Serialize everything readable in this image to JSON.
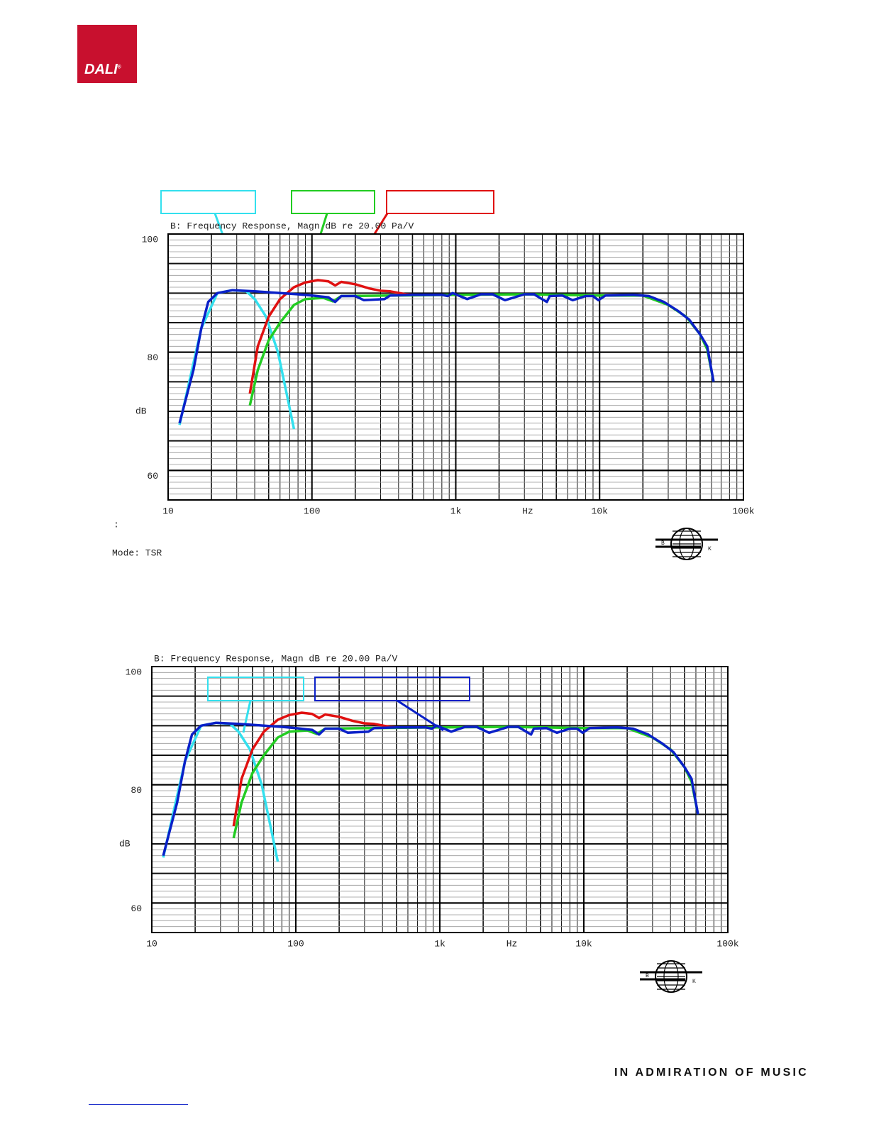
{
  "header": {
    "logo": "DALI",
    "logo_mark": "®"
  },
  "chart_data": [
    {
      "type": "line",
      "title": "B: Frequency Response, Magn dB re 20.00 Pa/V",
      "x_label": "Hz",
      "y_label": "dB",
      "annotation": ":",
      "mode": "Mode: TSR",
      "log_x": true,
      "grid": true,
      "minor_grid": true,
      "xlim": [
        10,
        100000
      ],
      "ylim": [
        55,
        100
      ],
      "xticks": [
        10,
        100,
        {
          "value": 1000,
          "label": "1k"
        },
        {
          "value": 10000,
          "label": "10k"
        },
        {
          "value": 100000,
          "label": "100k"
        }
      ],
      "yticks": [
        60,
        80,
        100
      ],
      "bk_logo": {
        "left": "B",
        "right": "K"
      },
      "series": [
        {
          "color": "#33e0ee",
          "x": [
            12,
            17,
            22,
            28,
            35,
            40,
            48,
            58,
            68,
            75
          ],
          "values": [
            67.7,
            84,
            90,
            90.5,
            90.3,
            89,
            86,
            80,
            72,
            67
          ]
        },
        {
          "color": "#22cc22",
          "x": [
            37,
            42,
            50,
            60,
            75,
            90,
            120,
            140,
            160,
            350,
            1000,
            3000,
            10000,
            20000,
            30000,
            40000,
            50000,
            56000,
            62000
          ],
          "values": [
            71,
            77,
            82,
            85,
            88,
            89,
            89.2,
            88.6,
            89.5,
            89.6,
            89.7,
            89.8,
            89.6,
            89.6,
            88,
            86,
            83,
            80.5,
            75
          ]
        },
        {
          "color": "#e01010",
          "x": [
            37,
            42,
            50,
            60,
            75,
            90,
            110,
            130,
            145,
            160,
            200,
            250,
            300,
            350,
            450,
            500
          ],
          "values": [
            73,
            81,
            86,
            89,
            91,
            91.8,
            92.2,
            92,
            91.3,
            91.9,
            91.5,
            90.8,
            90.4,
            90.3,
            89.8,
            89.7
          ]
        },
        {
          "color": "#0a20c8",
          "x": [
            12,
            15,
            17,
            19,
            22,
            28,
            40,
            60,
            80,
            100,
            130,
            145,
            160,
            200,
            230,
            320,
            350,
            500,
            800,
            880,
            950,
            1200,
            1500,
            1800,
            2200,
            3000,
            3500,
            4300,
            4500,
            5500,
            6500,
            8000,
            9000,
            9800,
            11000,
            17000,
            22000,
            28000,
            35000,
            42000,
            50000,
            56000,
            62000
          ],
          "values": [
            68,
            77,
            84,
            88.5,
            90,
            90.5,
            90.3,
            90,
            89.8,
            89.6,
            89.3,
            88.5,
            89.5,
            89.5,
            88.8,
            89,
            89.6,
            89.7,
            89.7,
            89.5,
            90,
            89,
            89.8,
            89.8,
            88.8,
            89.8,
            89.8,
            88.5,
            89.5,
            89.6,
            88.8,
            89.5,
            89.5,
            88.8,
            89.6,
            89.7,
            89.5,
            88.5,
            87,
            85.5,
            83,
            81,
            75
          ]
        }
      ]
    },
    {
      "type": "line",
      "title": "B: Frequency Response, Magn dB re 20.00 Pa/V",
      "x_label": "Hz",
      "y_label": "dB",
      "log_x": true,
      "grid": true,
      "minor_grid": true,
      "xlim": [
        10,
        100000
      ],
      "ylim": [
        55,
        100
      ],
      "xticks": [
        10,
        100,
        {
          "value": 1000,
          "label": "1k"
        },
        {
          "value": 10000,
          "label": "10k"
        },
        {
          "value": 100000,
          "label": "100k"
        }
      ],
      "yticks": [
        60,
        80,
        100
      ],
      "bk_logo": {
        "left": "B",
        "right": "K"
      },
      "series": [
        {
          "color": "#33e0ee",
          "x": [
            12,
            17,
            22,
            28,
            35,
            40,
            48,
            58,
            68,
            75
          ],
          "values": [
            67.7,
            84,
            90,
            90.5,
            90.3,
            89,
            86,
            80,
            72,
            67
          ]
        },
        {
          "color": "#22cc22",
          "x": [
            37,
            42,
            50,
            60,
            75,
            90,
            120,
            140,
            160,
            350,
            1000,
            3000,
            10000,
            20000,
            30000,
            40000,
            50000,
            56000,
            62000
          ],
          "values": [
            71,
            77,
            82,
            85,
            88,
            89,
            89.2,
            88.6,
            89.5,
            89.6,
            89.7,
            89.8,
            89.6,
            89.6,
            88,
            86,
            83,
            80.5,
            75
          ]
        },
        {
          "color": "#e01010",
          "x": [
            37,
            42,
            50,
            60,
            75,
            90,
            110,
            130,
            145,
            160,
            200,
            250,
            300,
            350,
            450,
            500
          ],
          "values": [
            73,
            81,
            86,
            89,
            91,
            91.8,
            92.2,
            92,
            91.3,
            91.9,
            91.5,
            90.8,
            90.4,
            90.3,
            89.8,
            89.7
          ]
        },
        {
          "color": "#0a20c8",
          "x": [
            12,
            15,
            17,
            19,
            22,
            28,
            40,
            60,
            80,
            100,
            130,
            145,
            160,
            200,
            230,
            320,
            350,
            500,
            800,
            880,
            950,
            1200,
            1500,
            1800,
            2200,
            3000,
            3500,
            4300,
            4500,
            5500,
            6500,
            8000,
            9000,
            9800,
            11000,
            17000,
            22000,
            28000,
            35000,
            42000,
            50000,
            56000,
            62000
          ],
          "values": [
            68,
            77,
            84,
            88.5,
            90,
            90.5,
            90.3,
            90,
            89.8,
            89.6,
            89.3,
            88.5,
            89.5,
            89.5,
            88.8,
            89,
            89.6,
            89.7,
            89.7,
            89.5,
            90,
            89,
            89.8,
            89.8,
            88.8,
            89.8,
            89.8,
            88.5,
            89.5,
            89.6,
            88.8,
            89.5,
            89.5,
            88.8,
            89.6,
            89.7,
            89.5,
            88.5,
            87,
            85.5,
            83,
            81,
            75
          ]
        }
      ]
    }
  ],
  "footer": {
    "slogan": "IN ADMIRATION OF MUSIC"
  }
}
